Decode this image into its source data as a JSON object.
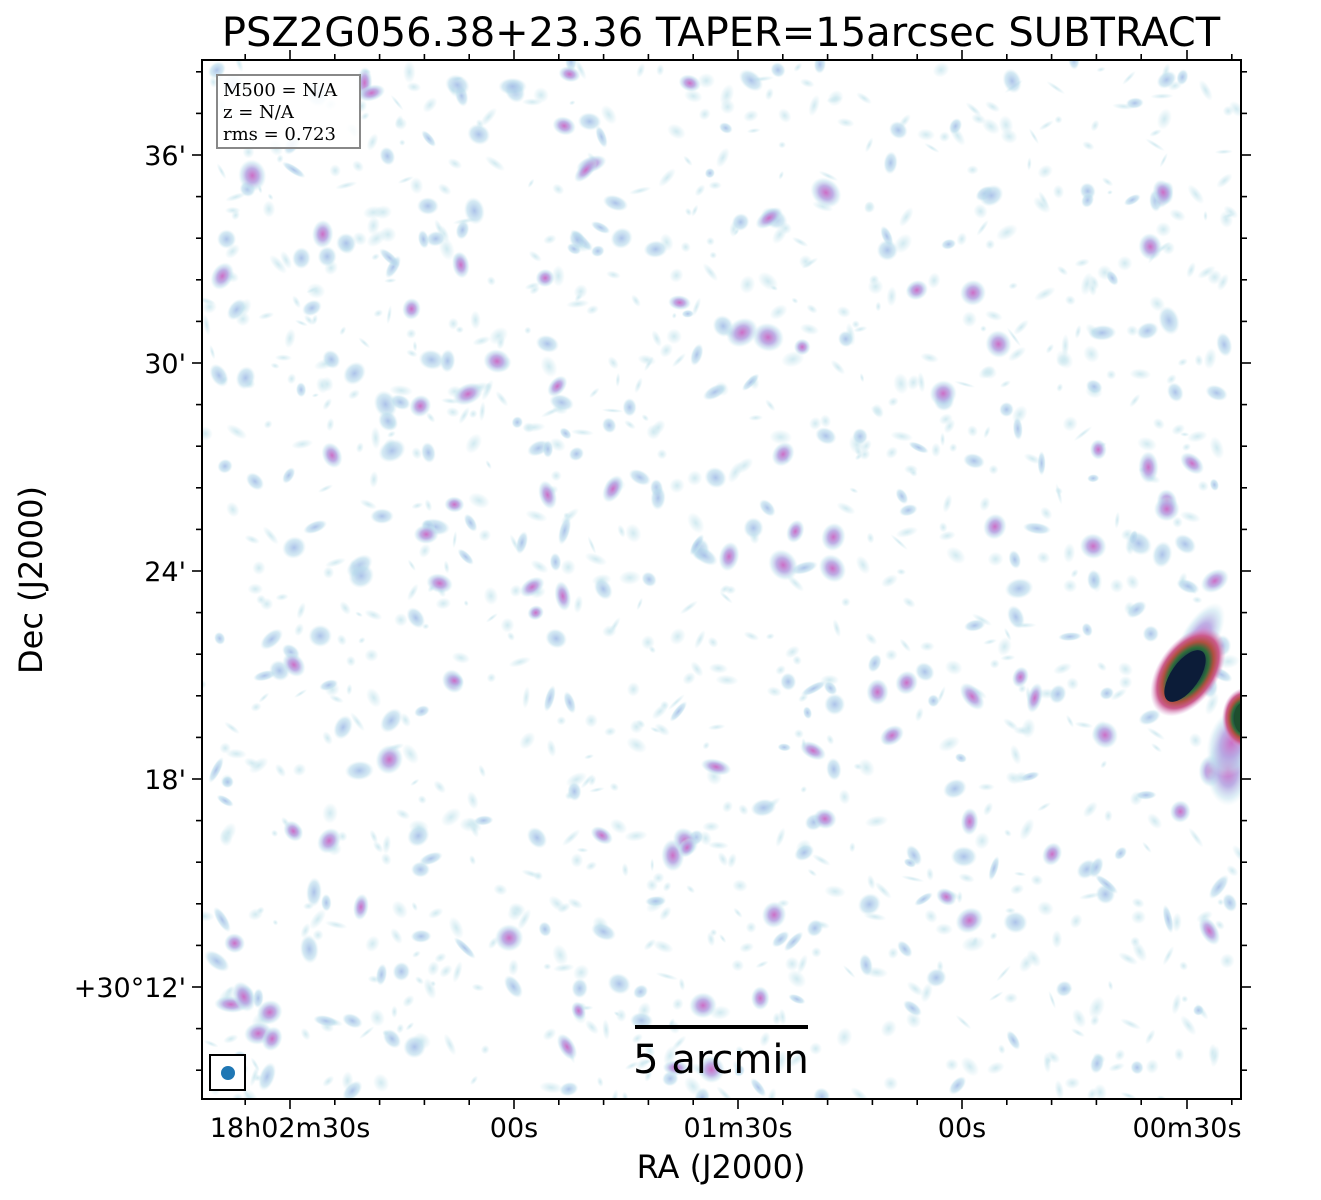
{
  "chart_data": {
    "type": "heatmap",
    "title": "PSZ2G056.38+23.36 TAPER=15arcsec SUBTRACT",
    "xlabel": "RA (J2000)",
    "ylabel": "Dec (J2000)",
    "x_tick_labels": [
      "18h02m30s",
      "00s",
      "01m30s",
      "00s",
      "00m30s"
    ],
    "y_tick_labels": [
      "36'",
      "30'",
      "24'",
      "18'",
      "+30°12'"
    ],
    "info_box": [
      "M500 = N/A",
      "z = N/A",
      "rms = 0.723"
    ],
    "scalebar_label": "5 arcmin",
    "colormap": [
      "#ffffff",
      "#c8e6ee",
      "#a9cbe8",
      "#b8a8e0",
      "#cc6fc8",
      "#c85070",
      "#2f6e3a",
      "#0c1c38"
    ],
    "bright_sources": [
      {
        "ra": "18h00m29s",
        "dec": "+30°21.2'",
        "peak": "high"
      },
      {
        "ra": "18h00m20s",
        "dec": "+30°19.7'",
        "peak": "high"
      }
    ],
    "beam_color": "#1f77b4"
  }
}
